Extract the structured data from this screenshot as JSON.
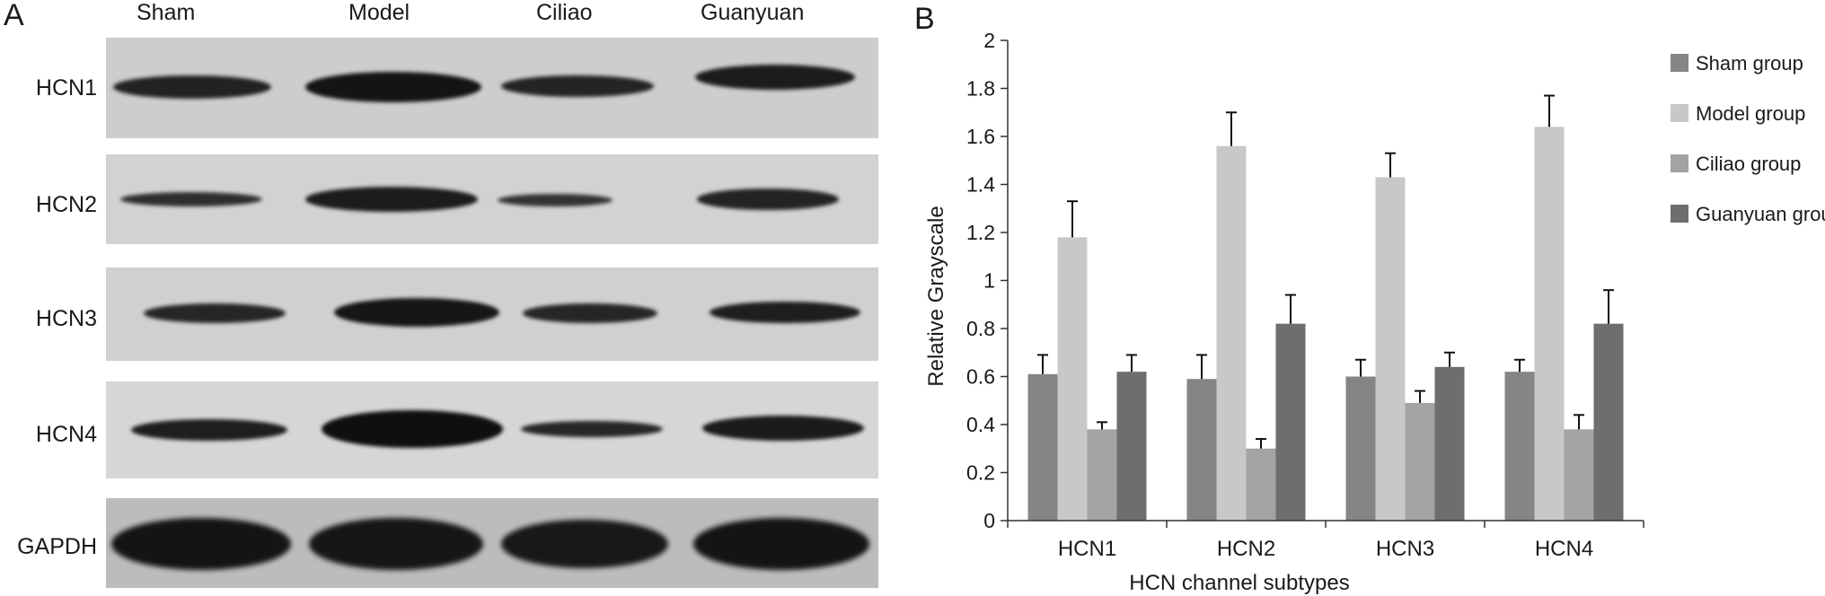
{
  "panels": {
    "a": "A",
    "b": "B"
  },
  "blot": {
    "lanes": [
      "Sham",
      "Model",
      "Ciliao",
      "Guanyuan"
    ],
    "rows": [
      {
        "label": "HCN1",
        "intensity": [
          0.75,
          0.95,
          0.72,
          0.85
        ]
      },
      {
        "label": "HCN2",
        "intensity": [
          0.55,
          0.85,
          0.45,
          0.75
        ]
      },
      {
        "label": "HCN3",
        "intensity": [
          0.7,
          0.9,
          0.7,
          0.8
        ]
      },
      {
        "label": "HCN4",
        "intensity": [
          0.8,
          1.0,
          0.7,
          0.85
        ]
      },
      {
        "label": "GAPDH",
        "intensity": [
          1.0,
          1.0,
          1.0,
          1.0
        ]
      }
    ]
  },
  "chart_data": {
    "type": "bar",
    "title": "",
    "xlabel": "HCN channel subtypes",
    "ylabel": "Relative Grayscale",
    "ylim": [
      0,
      2
    ],
    "yticks": [
      "0",
      "0.2",
      "0.4",
      "0.6",
      "0.8",
      "1",
      "1.2",
      "1.4",
      "1.6",
      "1.8",
      "2"
    ],
    "categories": [
      "HCN1",
      "HCN2",
      "HCN3",
      "HCN4"
    ],
    "error_bars": "upper",
    "legend_position": "right",
    "grid": false,
    "series": [
      {
        "name": "Sham group",
        "color": "#858585",
        "values": [
          0.61,
          0.59,
          0.6,
          0.62
        ],
        "errors": [
          0.08,
          0.1,
          0.07,
          0.05
        ]
      },
      {
        "name": "Model group",
        "color": "#c8c8c8",
        "values": [
          1.18,
          1.56,
          1.43,
          1.64
        ],
        "errors": [
          0.15,
          0.14,
          0.1,
          0.13
        ]
      },
      {
        "name": "Ciliao group",
        "color": "#a3a3a3",
        "values": [
          0.38,
          0.3,
          0.49,
          0.38
        ],
        "errors": [
          0.03,
          0.04,
          0.05,
          0.06
        ]
      },
      {
        "name": "Guanyuan group",
        "color": "#6e6e6e",
        "values": [
          0.62,
          0.82,
          0.64,
          0.82
        ],
        "errors": [
          0.07,
          0.12,
          0.06,
          0.14
        ]
      }
    ]
  }
}
